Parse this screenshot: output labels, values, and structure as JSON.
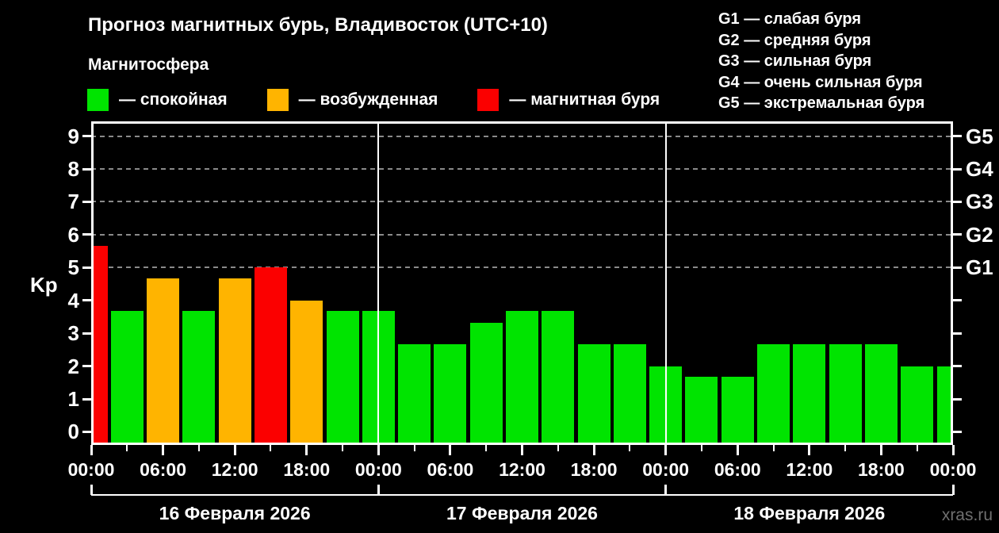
{
  "header": {
    "title": "Прогноз магнитных бурь, Владивосток (UTC+10)",
    "subtitle": "Магнитосфера",
    "legend": [
      {
        "name": "quiet",
        "label": "— спокойная",
        "color": "#00e400"
      },
      {
        "name": "unsettled",
        "label": "— возбужденная",
        "color": "#ffb400"
      },
      {
        "name": "storm",
        "label": "— магнитная буря",
        "color": "#fb0000"
      }
    ]
  },
  "g_legend": {
    "items": [
      "G1 — слабая буря",
      "G2 — средняя буря",
      "G3 — сильная буря",
      "G4 — очень сильная буря",
      "G5 — экстремальная буря"
    ]
  },
  "watermark": "xras.ru",
  "chart_data": {
    "type": "bar",
    "title": "Прогноз магнитных бурь, Владивосток (UTC+10)",
    "ylabel": "Kp",
    "ylim": [
      -0.4,
      9.45
    ],
    "y_ticks": [
      0,
      1,
      2,
      3,
      4,
      5,
      6,
      7,
      8,
      9
    ],
    "gridlines_kp": [
      5,
      6,
      7,
      8,
      9
    ],
    "grid": "dashed horizontal at G-storm levels only",
    "x_hours": [
      0,
      3,
      6,
      9,
      12,
      15,
      18,
      21,
      24,
      27,
      30,
      33,
      36,
      39,
      42,
      45,
      48,
      51,
      54,
      57,
      60,
      63,
      66,
      69,
      72
    ],
    "kp": [
      5.67,
      3.67,
      4.67,
      3.67,
      4.67,
      5.0,
      4.0,
      3.67,
      3.67,
      2.67,
      2.67,
      3.33,
      3.67,
      3.67,
      2.67,
      2.67,
      2.0,
      1.67,
      1.67,
      2.67,
      2.67,
      2.67,
      2.67,
      2.0,
      2.0
    ],
    "colors": {
      "quiet": "#00e400",
      "unsettled": "#ffb400",
      "storm": "#fb0000"
    },
    "thresholds": {
      "unsettled_min": 4,
      "storm_min": 5
    },
    "x_tick_labels": [
      "00:00",
      "06:00",
      "12:00",
      "18:00",
      "00:00",
      "06:00",
      "12:00",
      "18:00",
      "00:00",
      "06:00",
      "12:00",
      "18:00",
      "00:00"
    ],
    "x_major_step_hours": 6,
    "x_minor_step_hours": 3,
    "day_boundaries_hours": [
      0,
      24,
      48,
      72
    ],
    "day_separators_hours": [
      24,
      48
    ],
    "days": [
      "16 Февраля 2026",
      "17 Февраля 2026",
      "18 Февраля 2026"
    ],
    "right_axis": [
      {
        "kp": 5,
        "label": "G1"
      },
      {
        "kp": 6,
        "label": "G2"
      },
      {
        "kp": 7,
        "label": "G3"
      },
      {
        "kp": 8,
        "label": "G4"
      },
      {
        "kp": 9,
        "label": "G5"
      }
    ],
    "legend_position": "top-left row (quiet/unsettled/storm), G-scale list top-right"
  }
}
